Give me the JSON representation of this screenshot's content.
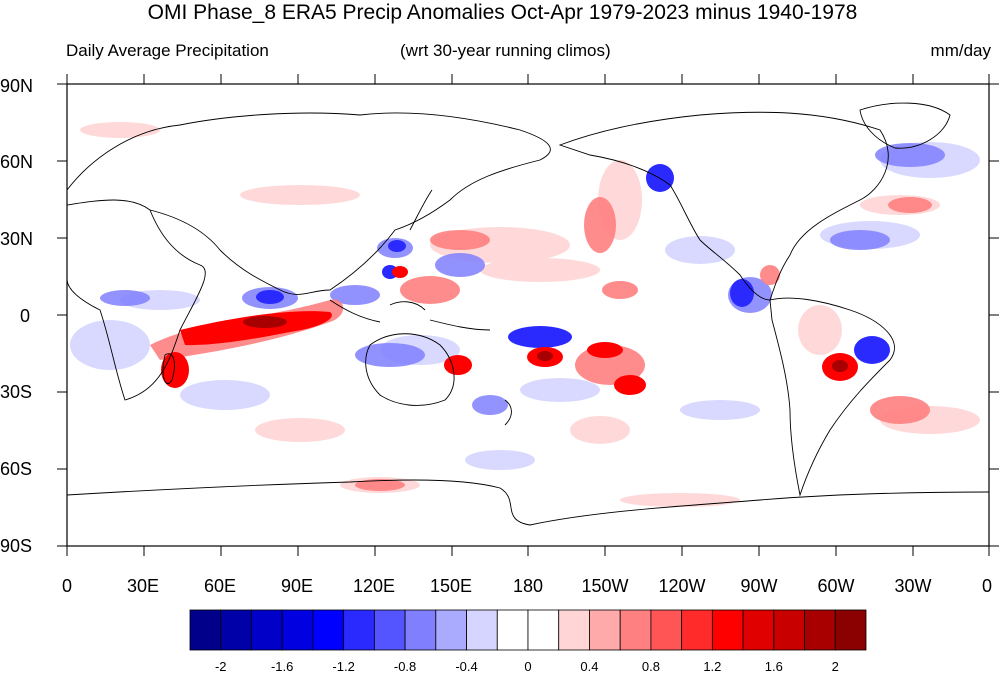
{
  "title": "OMI Phase_8 ERA5 Precip Anomalies Oct-Apr 1979-2023 minus 1940-1978",
  "subtitle_left": "Daily Average Precipitation",
  "subtitle_center": "(wrt 30-year running climos)",
  "subtitle_right": "mm/day",
  "lat_labels": [
    "90N",
    "60N",
    "30N",
    "0",
    "30S",
    "60S",
    "90S"
  ],
  "lon_labels": [
    "0",
    "30E",
    "60E",
    "90E",
    "120E",
    "150E",
    "180",
    "150W",
    "120W",
    "90W",
    "60W",
    "30W",
    "0"
  ],
  "colorbar": {
    "colors": [
      "#00008b",
      "#0000a8",
      "#0000c8",
      "#0000e0",
      "#0000ff",
      "#2a2aff",
      "#5555ff",
      "#8080ff",
      "#aaaaff",
      "#d5d5ff",
      "#ffffff",
      "#ffffff",
      "#ffd5d5",
      "#ffaaaa",
      "#ff8080",
      "#ff5555",
      "#ff2a2a",
      "#ff0000",
      "#e00000",
      "#c80000",
      "#a80000",
      "#8b0000"
    ],
    "tick_labels": [
      "-2",
      "-1.6",
      "-1.2",
      "-0.8",
      "-0.4",
      "0",
      "0.4",
      "0.8",
      "1.2",
      "1.6",
      "2"
    ]
  }
}
